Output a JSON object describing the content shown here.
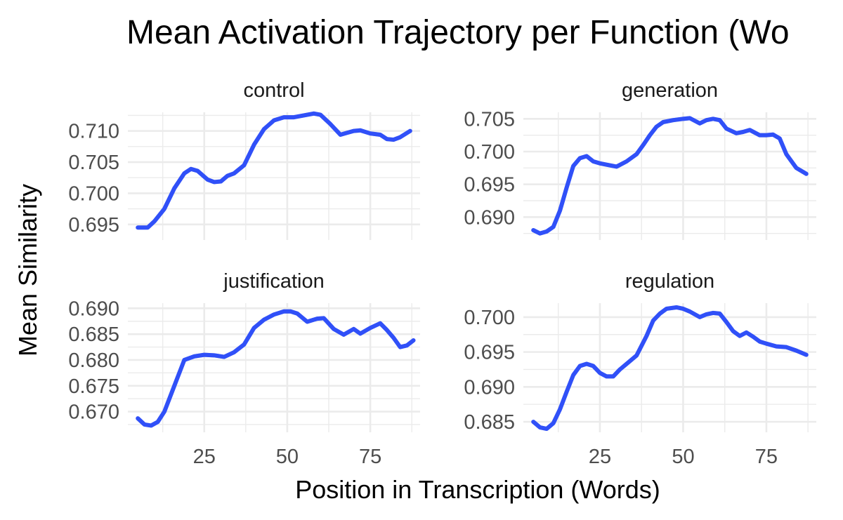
{
  "title": "Mean Activation Trajectory per Function (Wo",
  "xlabel": "Position in Transcription (Words)",
  "ylabel": "Mean Similarity",
  "colors": {
    "line": "#3050f8",
    "band": "#999999",
    "grid": "#ebebeb"
  },
  "chart_data": {
    "type": "line",
    "layout": "facet_wrap 2x2",
    "shared_x": true,
    "xlim": [
      2,
      90
    ],
    "x_ticks": [
      25,
      50,
      75
    ],
    "x_tick_labels": [
      "25",
      "50",
      "75"
    ],
    "grid": true,
    "legend": "none",
    "panels": [
      {
        "name": "control",
        "ylim": [
          0.6925,
          0.713
        ],
        "y_ticks": [
          0.695,
          0.7,
          0.705,
          0.71
        ],
        "y_tick_labels": [
          "0.695",
          "0.700",
          "0.705",
          "0.710"
        ],
        "x": [
          5,
          8,
          10,
          13,
          16,
          19,
          21,
          23,
          26,
          28,
          30,
          32,
          34,
          37,
          40,
          43,
          46,
          49,
          52,
          54,
          56,
          58,
          60,
          63,
          66,
          68,
          70,
          72,
          75,
          78,
          80,
          82,
          84,
          87
        ],
        "y": [
          0.6945,
          0.6945,
          0.6955,
          0.6975,
          0.7008,
          0.7032,
          0.7039,
          0.7036,
          0.7022,
          0.7018,
          0.7019,
          0.7028,
          0.7032,
          0.7045,
          0.7078,
          0.7103,
          0.7117,
          0.7122,
          0.7122,
          0.7124,
          0.7126,
          0.7128,
          0.7126,
          0.7111,
          0.7094,
          0.7097,
          0.71,
          0.7101,
          0.7096,
          0.7094,
          0.7087,
          0.7086,
          0.709,
          0.71
        ]
      },
      {
        "name": "generation",
        "ylim": [
          0.6865,
          0.706
        ],
        "y_ticks": [
          0.69,
          0.695,
          0.7,
          0.705
        ],
        "y_tick_labels": [
          "0.690",
          "0.695",
          "0.700",
          "0.705"
        ],
        "x": [
          5,
          7,
          9,
          11,
          13,
          15,
          17,
          19,
          21,
          23,
          25,
          27,
          30,
          33,
          36,
          38,
          40,
          42,
          44,
          47,
          50,
          52,
          55,
          57,
          59,
          61,
          63,
          66,
          68,
          70,
          73,
          75,
          77,
          79,
          81,
          84,
          87
        ],
        "y": [
          0.688,
          0.6875,
          0.6878,
          0.6885,
          0.691,
          0.6945,
          0.6978,
          0.699,
          0.6993,
          0.6985,
          0.6982,
          0.698,
          0.6977,
          0.6985,
          0.6996,
          0.701,
          0.7025,
          0.7038,
          0.7045,
          0.7048,
          0.705,
          0.7051,
          0.7043,
          0.7048,
          0.705,
          0.7048,
          0.7035,
          0.7028,
          0.703,
          0.7033,
          0.7025,
          0.7025,
          0.7026,
          0.702,
          0.6996,
          0.6975,
          0.6966
        ]
      },
      {
        "name": "justification",
        "ylim": [
          0.666,
          0.691
        ],
        "y_ticks": [
          0.67,
          0.675,
          0.68,
          0.685,
          0.69
        ],
        "y_tick_labels": [
          "0.670",
          "0.675",
          "0.680",
          "0.685",
          "0.690"
        ],
        "x": [
          5,
          7,
          9,
          11,
          13,
          16,
          19,
          22,
          25,
          28,
          31,
          34,
          37,
          40,
          43,
          46,
          49,
          51,
          53,
          56,
          59,
          61,
          64,
          67,
          70,
          72,
          75,
          78,
          80,
          82,
          84,
          86,
          88
        ],
        "y": [
          0.6687,
          0.6675,
          0.6673,
          0.668,
          0.67,
          0.675,
          0.68,
          0.6807,
          0.681,
          0.6809,
          0.6806,
          0.6815,
          0.683,
          0.6862,
          0.6878,
          0.6888,
          0.6894,
          0.6894,
          0.689,
          0.6874,
          0.688,
          0.6881,
          0.686,
          0.6849,
          0.686,
          0.6851,
          0.6862,
          0.6871,
          0.6858,
          0.6843,
          0.6825,
          0.6828,
          0.6838
        ]
      },
      {
        "name": "regulation",
        "ylim": [
          0.6835,
          0.702
        ],
        "y_ticks": [
          0.685,
          0.69,
          0.695,
          0.7
        ],
        "y_tick_labels": [
          "0.685",
          "0.690",
          "0.695",
          "0.700"
        ],
        "x": [
          5,
          7,
          9,
          11,
          13,
          15,
          17,
          19,
          21,
          23,
          25,
          27,
          29,
          31,
          33,
          36,
          39,
          41,
          43,
          45,
          48,
          50,
          52,
          55,
          57,
          59,
          61,
          63,
          65,
          67,
          69,
          71,
          73,
          75,
          78,
          81,
          84,
          87
        ],
        "y": [
          0.685,
          0.6842,
          0.684,
          0.6848,
          0.6868,
          0.6893,
          0.6917,
          0.693,
          0.6933,
          0.693,
          0.692,
          0.6915,
          0.6915,
          0.6925,
          0.6933,
          0.6945,
          0.6973,
          0.6995,
          0.7005,
          0.7012,
          0.7014,
          0.7012,
          0.7008,
          0.7,
          0.7004,
          0.7006,
          0.7005,
          0.6993,
          0.698,
          0.6973,
          0.6978,
          0.6972,
          0.6965,
          0.6962,
          0.6958,
          0.6957,
          0.6952,
          0.6946
        ]
      }
    ]
  }
}
